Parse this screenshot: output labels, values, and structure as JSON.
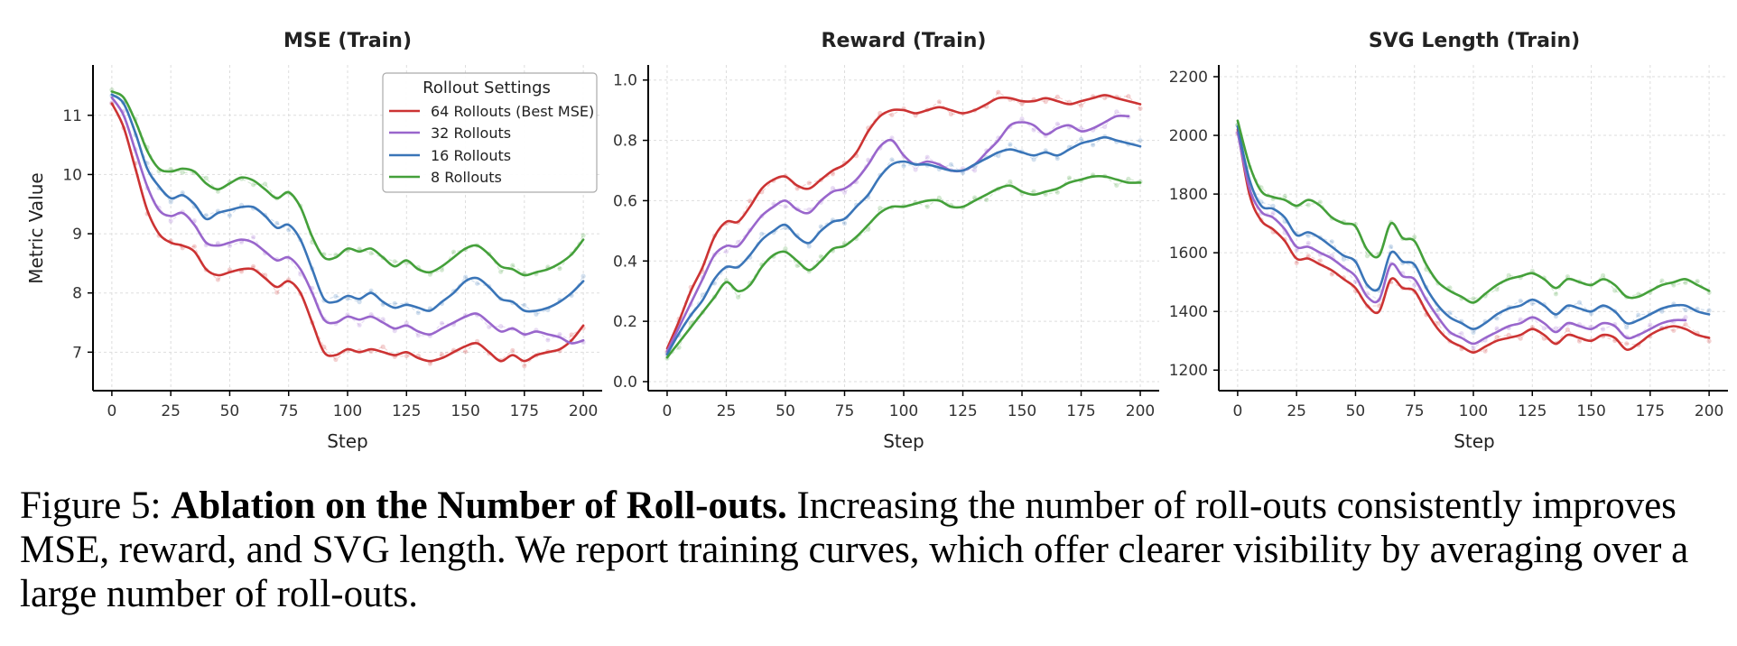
{
  "caption": {
    "label": "Figure 5:",
    "title": "Ablation on the Number of Roll-outs.",
    "text": "Increasing the number of roll-outs consistently improves MSE, reward, and SVG length. We report training curves, which offer clearer visibility by averaging over a large number of roll-outs."
  },
  "colors": {
    "64": "#cc3333",
    "32": "#9966cc",
    "16": "#3a75b8",
    "8": "#44a03a"
  },
  "legend": {
    "title": "Rollout Settings",
    "entries": [
      "64 Rollouts (Best MSE)",
      "32 Rollouts",
      "16 Rollouts",
      "8 Rollouts"
    ]
  },
  "chart_data": [
    {
      "type": "line",
      "title": "MSE (Train)",
      "xlabel": "Step",
      "ylabel": "Metric Value",
      "xlim": [
        -8,
        208
      ],
      "ylim": [
        6.35,
        11.85
      ],
      "xticks": [
        0,
        25,
        50,
        75,
        100,
        125,
        150,
        175,
        200
      ],
      "yticks": [
        7,
        8,
        9,
        10,
        11
      ],
      "grid": true,
      "legend_position": "top-right",
      "x": [
        0,
        5,
        10,
        15,
        20,
        25,
        30,
        35,
        40,
        45,
        50,
        55,
        60,
        65,
        70,
        75,
        80,
        85,
        90,
        95,
        100,
        105,
        110,
        115,
        120,
        125,
        130,
        135,
        140,
        145,
        150,
        155,
        160,
        165,
        170,
        175,
        180,
        185,
        190,
        195,
        200
      ],
      "series": [
        {
          "name": "64 Rollouts (Best MSE)",
          "key": "64",
          "values": [
            11.2,
            10.8,
            10.1,
            9.4,
            9.0,
            8.85,
            8.8,
            8.7,
            8.4,
            8.3,
            8.35,
            8.4,
            8.4,
            8.25,
            8.1,
            8.2,
            8.0,
            7.5,
            7.0,
            6.95,
            7.05,
            7.0,
            7.05,
            7.0,
            6.95,
            7.0,
            6.9,
            6.85,
            6.9,
            7.0,
            7.1,
            7.15,
            7.0,
            6.85,
            6.95,
            6.85,
            6.95,
            7.0,
            7.05,
            7.2,
            7.45
          ]
        },
        {
          "name": "32 Rollouts",
          "key": "32",
          "values": [
            11.3,
            11.0,
            10.4,
            9.8,
            9.4,
            9.3,
            9.35,
            9.15,
            8.85,
            8.8,
            8.85,
            8.9,
            8.85,
            8.7,
            8.55,
            8.6,
            8.4,
            8.0,
            7.55,
            7.5,
            7.6,
            7.55,
            7.6,
            7.5,
            7.4,
            7.45,
            7.35,
            7.3,
            7.4,
            7.5,
            7.6,
            7.65,
            7.5,
            7.35,
            7.4,
            7.3,
            7.35,
            7.3,
            7.25,
            7.15,
            7.2
          ]
        },
        {
          "name": "16 Rollouts",
          "key": "16",
          "values": [
            11.35,
            11.2,
            10.7,
            10.1,
            9.8,
            9.6,
            9.65,
            9.5,
            9.25,
            9.35,
            9.4,
            9.45,
            9.45,
            9.3,
            9.1,
            9.15,
            8.9,
            8.4,
            7.9,
            7.85,
            7.95,
            7.9,
            8.0,
            7.85,
            7.75,
            7.8,
            7.75,
            7.7,
            7.85,
            8.0,
            8.2,
            8.25,
            8.1,
            7.9,
            7.85,
            7.7,
            7.7,
            7.75,
            7.85,
            8.0,
            8.2
          ]
        },
        {
          "name": "8 Rollouts",
          "key": "8",
          "values": [
            11.4,
            11.3,
            10.9,
            10.4,
            10.1,
            10.05,
            10.1,
            10.05,
            9.85,
            9.75,
            9.85,
            9.95,
            9.9,
            9.75,
            9.6,
            9.7,
            9.45,
            8.95,
            8.6,
            8.6,
            8.75,
            8.7,
            8.75,
            8.6,
            8.45,
            8.55,
            8.4,
            8.35,
            8.45,
            8.6,
            8.75,
            8.8,
            8.65,
            8.45,
            8.4,
            8.3,
            8.35,
            8.4,
            8.5,
            8.65,
            8.9
          ]
        }
      ]
    },
    {
      "type": "line",
      "title": "Reward (Train)",
      "xlabel": "Step",
      "ylabel": "",
      "xlim": [
        -8,
        208
      ],
      "ylim": [
        -0.03,
        1.05
      ],
      "xticks": [
        0,
        25,
        50,
        75,
        100,
        125,
        150,
        175,
        200
      ],
      "yticks": [
        0.0,
        0.2,
        0.4,
        0.6,
        0.8,
        1.0
      ],
      "grid": true,
      "x": [
        0,
        5,
        10,
        15,
        20,
        25,
        30,
        35,
        40,
        45,
        50,
        55,
        60,
        65,
        70,
        75,
        80,
        85,
        90,
        95,
        100,
        105,
        110,
        115,
        120,
        125,
        130,
        135,
        140,
        145,
        150,
        155,
        160,
        165,
        170,
        175,
        180,
        185,
        190,
        195,
        200
      ],
      "series": [
        {
          "name": "64 Rollouts (Best MSE)",
          "key": "64",
          "values": [
            0.11,
            0.2,
            0.3,
            0.38,
            0.48,
            0.53,
            0.53,
            0.58,
            0.64,
            0.67,
            0.68,
            0.65,
            0.64,
            0.67,
            0.7,
            0.72,
            0.76,
            0.83,
            0.88,
            0.9,
            0.9,
            0.89,
            0.9,
            0.91,
            0.9,
            0.89,
            0.9,
            0.92,
            0.94,
            0.94,
            0.93,
            0.93,
            0.94,
            0.93,
            0.92,
            0.93,
            0.94,
            0.95,
            0.94,
            0.93,
            0.92
          ]
        },
        {
          "name": "32 Rollouts",
          "key": "32",
          "values": [
            0.1,
            0.18,
            0.26,
            0.34,
            0.42,
            0.45,
            0.45,
            0.5,
            0.55,
            0.58,
            0.6,
            0.57,
            0.56,
            0.6,
            0.63,
            0.64,
            0.67,
            0.72,
            0.78,
            0.8,
            0.75,
            0.72,
            0.73,
            0.72,
            0.7,
            0.7,
            0.72,
            0.76,
            0.8,
            0.85,
            0.86,
            0.85,
            0.82,
            0.84,
            0.85,
            0.83,
            0.84,
            0.86,
            0.88,
            0.88,
            null
          ]
        },
        {
          "name": "16 Rollouts",
          "key": "16",
          "values": [
            0.09,
            0.16,
            0.22,
            0.27,
            0.34,
            0.38,
            0.38,
            0.42,
            0.47,
            0.5,
            0.52,
            0.48,
            0.46,
            0.5,
            0.53,
            0.54,
            0.58,
            0.62,
            0.68,
            0.72,
            0.73,
            0.72,
            0.72,
            0.71,
            0.7,
            0.7,
            0.72,
            0.74,
            0.76,
            0.77,
            0.76,
            0.75,
            0.76,
            0.75,
            0.77,
            0.79,
            0.8,
            0.81,
            0.8,
            0.79,
            0.78
          ]
        },
        {
          "name": "8 Rollouts",
          "key": "8",
          "values": [
            0.08,
            0.13,
            0.18,
            0.23,
            0.28,
            0.33,
            0.3,
            0.32,
            0.38,
            0.42,
            0.43,
            0.4,
            0.37,
            0.4,
            0.44,
            0.45,
            0.48,
            0.52,
            0.56,
            0.58,
            0.58,
            0.59,
            0.6,
            0.6,
            0.58,
            0.58,
            0.6,
            0.62,
            0.64,
            0.65,
            0.63,
            0.62,
            0.63,
            0.64,
            0.66,
            0.67,
            0.68,
            0.68,
            0.67,
            0.66,
            0.66
          ]
        }
      ]
    },
    {
      "type": "line",
      "title": "SVG Length (Train)",
      "xlabel": "Step",
      "ylabel": "",
      "xlim": [
        -8,
        208
      ],
      "ylim": [
        1130,
        2240
      ],
      "xticks": [
        0,
        25,
        50,
        75,
        100,
        125,
        150,
        175,
        200
      ],
      "yticks": [
        1200,
        1400,
        1600,
        1800,
        2000,
        2200
      ],
      "grid": true,
      "x": [
        0,
        5,
        10,
        15,
        20,
        25,
        30,
        35,
        40,
        45,
        50,
        55,
        60,
        65,
        70,
        75,
        80,
        85,
        90,
        95,
        100,
        105,
        110,
        115,
        120,
        125,
        130,
        135,
        140,
        145,
        150,
        155,
        160,
        165,
        170,
        175,
        180,
        185,
        190,
        195,
        200
      ],
      "series": [
        {
          "name": "64 Rollouts (Best MSE)",
          "key": "64",
          "values": [
            2020,
            1800,
            1710,
            1680,
            1640,
            1580,
            1580,
            1560,
            1540,
            1510,
            1480,
            1420,
            1400,
            1510,
            1480,
            1470,
            1400,
            1340,
            1300,
            1280,
            1260,
            1280,
            1300,
            1310,
            1320,
            1340,
            1320,
            1290,
            1320,
            1310,
            1300,
            1320,
            1310,
            1270,
            1290,
            1320,
            1340,
            1350,
            1340,
            1320,
            1310
          ]
        },
        {
          "name": "32 Rollouts",
          "key": "32",
          "values": [
            2010,
            1820,
            1740,
            1720,
            1680,
            1620,
            1620,
            1600,
            1580,
            1550,
            1520,
            1450,
            1440,
            1560,
            1520,
            1510,
            1440,
            1380,
            1330,
            1310,
            1290,
            1310,
            1330,
            1350,
            1360,
            1380,
            1360,
            1330,
            1360,
            1350,
            1340,
            1360,
            1350,
            1310,
            1320,
            1340,
            1360,
            1370,
            1370,
            null,
            null
          ]
        },
        {
          "name": "16 Rollouts",
          "key": "16",
          "values": [
            2030,
            1850,
            1760,
            1750,
            1720,
            1660,
            1670,
            1650,
            1620,
            1590,
            1570,
            1490,
            1480,
            1600,
            1570,
            1560,
            1480,
            1420,
            1380,
            1360,
            1340,
            1360,
            1390,
            1410,
            1420,
            1440,
            1420,
            1390,
            1420,
            1410,
            1400,
            1420,
            1400,
            1360,
            1370,
            1390,
            1410,
            1420,
            1420,
            1400,
            1390
          ]
        },
        {
          "name": "8 Rollouts",
          "key": "8",
          "values": [
            2050,
            1900,
            1810,
            1790,
            1780,
            1760,
            1780,
            1760,
            1720,
            1700,
            1690,
            1610,
            1590,
            1700,
            1650,
            1640,
            1560,
            1500,
            1470,
            1450,
            1430,
            1460,
            1490,
            1510,
            1520,
            1530,
            1510,
            1480,
            1510,
            1500,
            1490,
            1510,
            1490,
            1450,
            1450,
            1470,
            1490,
            1500,
            1510,
            1490,
            1470
          ]
        }
      ]
    }
  ]
}
